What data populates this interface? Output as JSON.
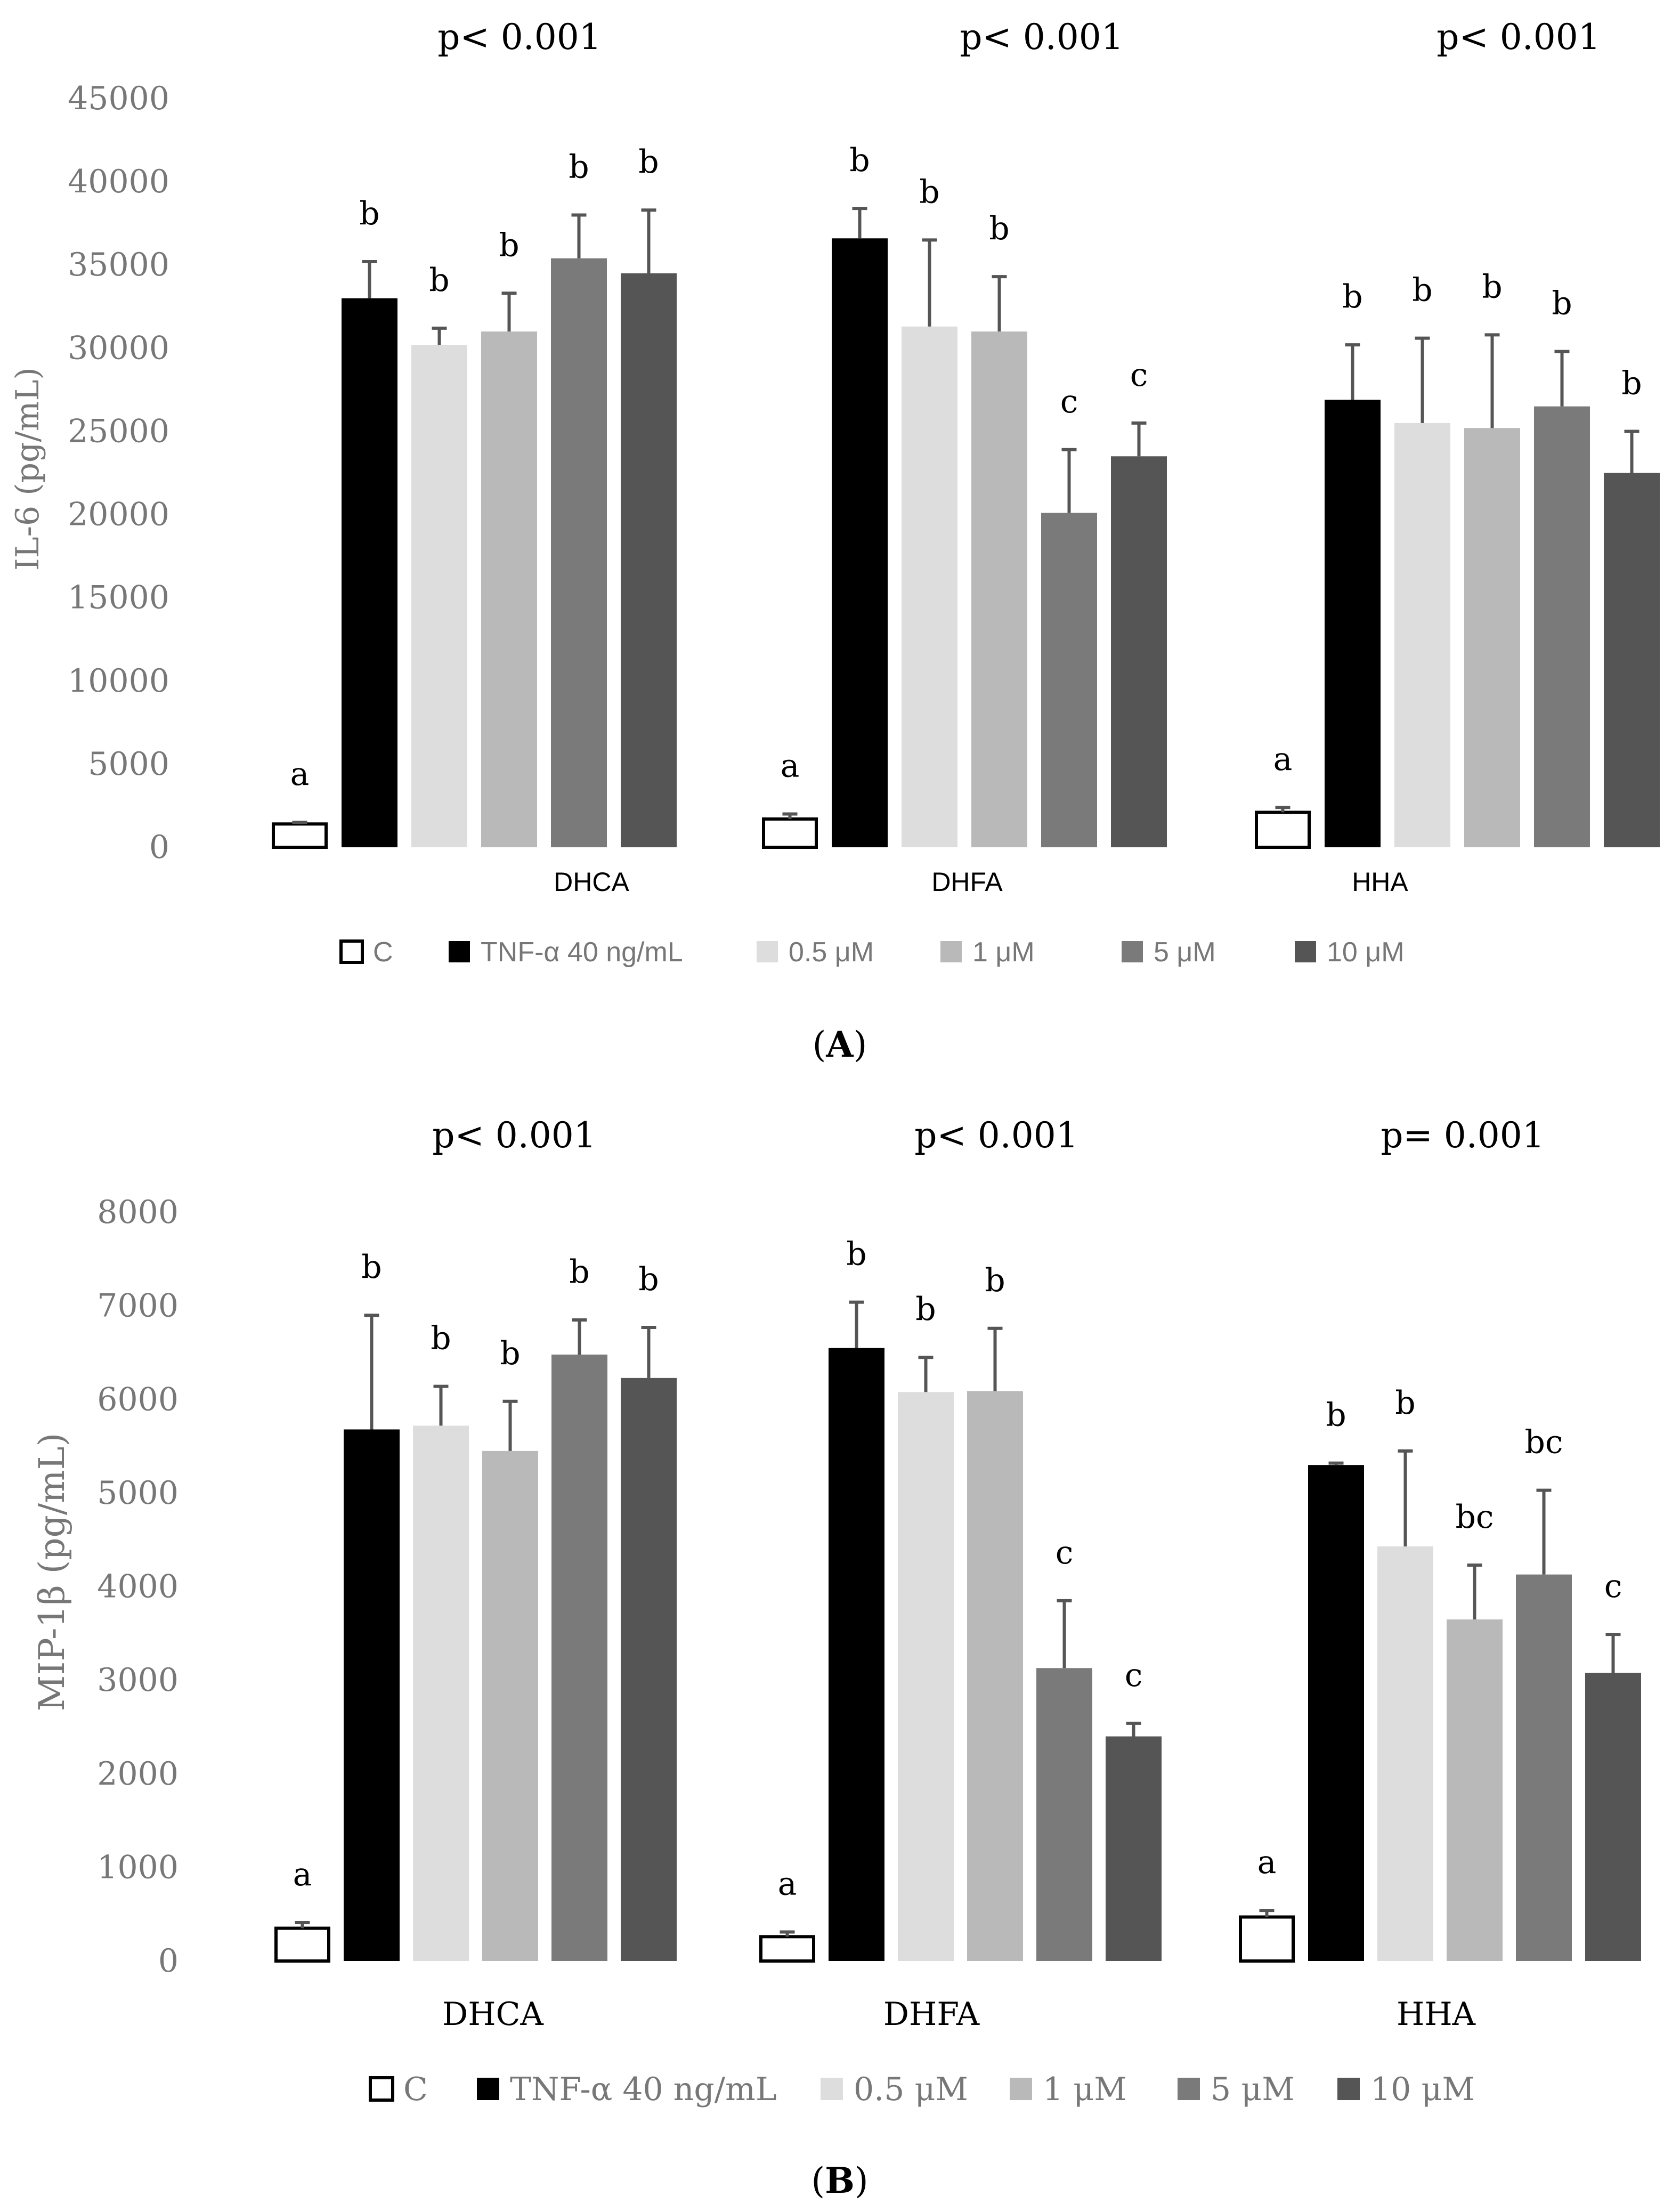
{
  "chart_data": [
    {
      "type": "bar",
      "panel_label": "A",
      "ylabel": "IL-6 (pg/mL)",
      "ylim": [
        0,
        45000
      ],
      "yticks": [
        "0",
        "5000",
        "10000",
        "15000",
        "20000",
        "25000",
        "30000",
        "35000",
        "40000",
        "45000"
      ],
      "legend_position": "bottom",
      "groups": [
        {
          "name": "DHCA",
          "p_label": "p< 0.001",
          "values": [
            1400,
            33000,
            30200,
            31000,
            35400,
            34500
          ],
          "errors": [
            100,
            2200,
            1000,
            2300,
            2600,
            3800
          ],
          "letters": [
            "a",
            "b",
            "b",
            "b",
            "b",
            "b"
          ]
        },
        {
          "name": "DHFA",
          "p_label": "p< 0.001",
          "values": [
            1700,
            36600,
            31300,
            31000,
            20100,
            23500
          ],
          "errors": [
            300,
            1800,
            5200,
            3300,
            3800,
            2000
          ],
          "letters": [
            "a",
            "b",
            "b",
            "b",
            "c",
            "c"
          ]
        },
        {
          "name": "HHA",
          "p_label": "p< 0.001",
          "values": [
            2100,
            26900,
            25500,
            25200,
            26500,
            22500
          ],
          "errors": [
            300,
            3300,
            5100,
            5600,
            3300,
            2500
          ],
          "letters": [
            "a",
            "b",
            "b",
            "b",
            "b",
            "b"
          ]
        }
      ]
    },
    {
      "type": "bar",
      "panel_label": "B",
      "ylabel": "MIP-1β (pg/mL)",
      "ylim": [
        0,
        8000
      ],
      "yticks": [
        "0",
        "1000",
        "2000",
        "3000",
        "4000",
        "5000",
        "6000",
        "7000",
        "8000"
      ],
      "legend_position": "bottom",
      "groups": [
        {
          "name": "DHCA",
          "p_label": "p< 0.001",
          "values": [
            350,
            5680,
            5720,
            5450,
            6480,
            6230
          ],
          "errors": [
            60,
            1220,
            420,
            530,
            370,
            540
          ],
          "letters": [
            "a",
            "b",
            "b",
            "b",
            "b",
            "b"
          ]
        },
        {
          "name": "DHFA",
          "p_label": "p< 0.001",
          "values": [
            260,
            6550,
            6080,
            6090,
            3130,
            2400
          ],
          "errors": [
            50,
            490,
            370,
            670,
            720,
            140
          ],
          "letters": [
            "a",
            "b",
            "b",
            "b",
            "c",
            "c"
          ]
        },
        {
          "name": "HHA",
          "p_label": "p= 0.001",
          "values": [
            470,
            5300,
            4430,
            3650,
            4130,
            3080
          ],
          "errors": [
            70,
            20,
            1020,
            580,
            900,
            410
          ],
          "letters": [
            "a",
            "b",
            "b",
            "bc",
            "bc",
            "c"
          ]
        }
      ]
    }
  ],
  "series": [
    {
      "name": "C",
      "color": "#ffffff",
      "stroke": "#000000"
    },
    {
      "name": "TNF-α 40 ng/mL",
      "color": "#000000",
      "stroke": "#000000"
    },
    {
      "name": "0.5 μM",
      "color": "#dddddd",
      "stroke": "#dddddd"
    },
    {
      "name": "1 μM",
      "color": "#b9b9b9",
      "stroke": "#b9b9b9"
    },
    {
      "name": "5 μM",
      "color": "#7a7a7a",
      "stroke": "#7a7a7a"
    },
    {
      "name": "10 μM",
      "color": "#555555",
      "stroke": "#555555"
    }
  ],
  "colors": {
    "axis_text": "#777777",
    "error_bar": "#555555",
    "text": "#000000"
  }
}
